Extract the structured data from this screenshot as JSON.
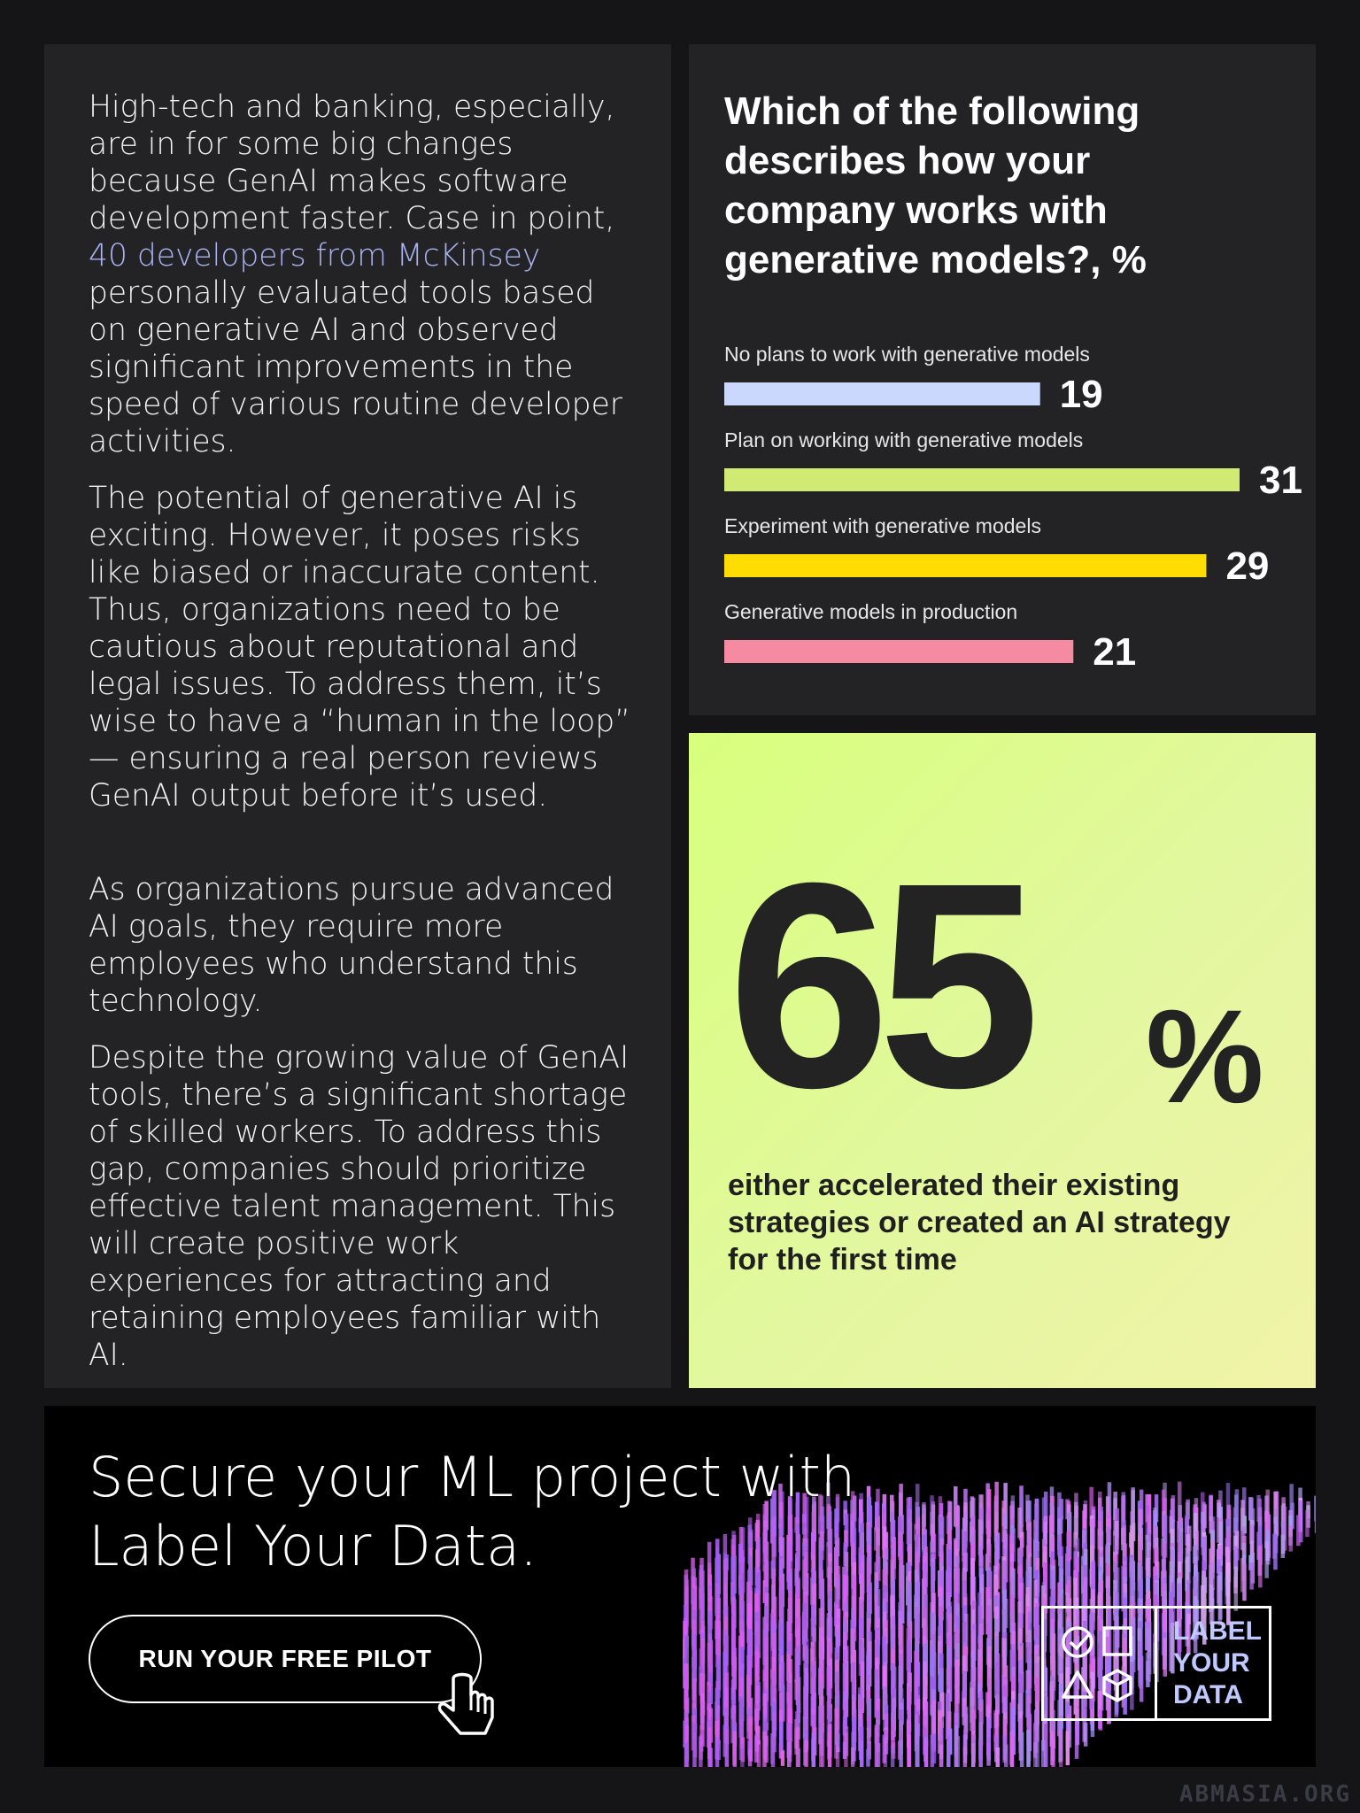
{
  "text_panel": {
    "para1_a": "High-tech and banking, especially, are in for some big changes because GenAI makes software development faster. Case in point, ",
    "para1_link": "40 developers from McKinsey",
    "para1_b": " personally evaluated tools based on generative AI and observed significant improvements in the speed of various routine developer activities.",
    "para2": "The potential of generative AI is exciting. However, it poses risks like biased or inaccurate content. Thus, organizations need to be cautious about reputational and legal issues. To address them, it’s wise to have a “human in the loop” — ensuring a real person reviews GenAI output before it’s used.",
    "para3": "As organizations pursue advanced AI goals, they require more employees who understand this technology.",
    "para4": "Despite the growing value of GenAI tools, there’s a significant shortage of skilled workers. To address this gap, companies should prioritize effective talent management. This will create positive work experiences for attracting and retaining employees familiar with AI."
  },
  "chart_data": {
    "type": "bar",
    "orientation": "horizontal",
    "title": "Which of the following describes how your company works with generative models?, %",
    "categories": [
      "No plans to work with generative models",
      "Plan on working with generative models",
      "Experiment with generative models",
      "Generative models in production"
    ],
    "values": [
      19,
      31,
      29,
      21
    ],
    "colors": [
      "#cbd8fd",
      "#d1ea73",
      "#fedd04",
      "#f68aa0"
    ],
    "xlim": [
      0,
      31
    ],
    "grid": false,
    "legend": "none"
  },
  "stat": {
    "number": "65",
    "percent": "%",
    "caption": "either accelerated their existing strategies or created an AI strategy for the first time"
  },
  "cta": {
    "heading": "Secure your ML project with Label Your Data.",
    "button_label": "RUN YOUR FREE PILOT",
    "logo_lines": [
      "LABEL",
      "YOUR",
      "DATA"
    ]
  },
  "watermark": "ABMASIA.ORG",
  "colors": {
    "background": "#151517",
    "panel": "#232325",
    "link": "#a9b3f2",
    "stat_bg": "#dcff83"
  }
}
